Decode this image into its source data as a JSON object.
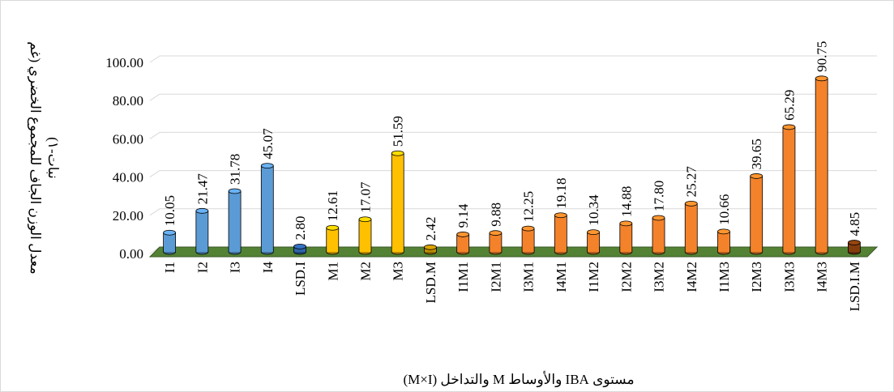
{
  "chart_data": {
    "type": "bar",
    "ylabel": [
      "معدل الوزن الجاف للمجموع الخضري (غم",
      "نبات-١)"
    ],
    "xlabel": "مستوى IBA والأوساط M والتداخل (M×I)",
    "categories": [
      "I1",
      "I2",
      "I3",
      "I4",
      "LSD.I",
      "M1",
      "M2",
      "M3",
      "LSD.M",
      "I1M1",
      "I2M1",
      "I3M1",
      "I4M1",
      "I1M2",
      "I2M2",
      "I3M2",
      "I4M2",
      "I1M3",
      "I2M3",
      "I3M3",
      "I4M3",
      "LSD.I.M"
    ],
    "values": [
      10.05,
      21.47,
      31.78,
      45.07,
      2.8,
      12.61,
      17.07,
      51.59,
      2.42,
      9.14,
      9.88,
      12.25,
      19.18,
      10.34,
      14.88,
      17.8,
      25.27,
      10.66,
      39.65,
      65.29,
      90.75,
      4.85
    ],
    "value_labels": [
      "10.05",
      "21.47",
      "31.78",
      "45.07",
      "2.80",
      "12.61",
      "17.07",
      "51.59",
      "2.42",
      "9.14",
      "9.88",
      "12.25",
      "19.18",
      "10.34",
      "14.88",
      "17.80",
      "25.27",
      "10.66",
      "39.65",
      "65.29",
      "90.75",
      "4.85"
    ],
    "colors": [
      "#5b9bd5",
      "#5b9bd5",
      "#5b9bd5",
      "#5b9bd5",
      "#2e64a8",
      "#ffc000",
      "#ffc000",
      "#ffc000",
      "#bf8f00",
      "#f4822a",
      "#f4822a",
      "#f4822a",
      "#f4822a",
      "#f4822a",
      "#f4822a",
      "#f4822a",
      "#f4822a",
      "#f4822a",
      "#f4822a",
      "#f4822a",
      "#f4822a",
      "#843c0c"
    ],
    "ylim": [
      0,
      100
    ],
    "yticks": [
      {
        "value": 0,
        "label": "0.00"
      },
      {
        "value": 20,
        "label": "20.00"
      },
      {
        "value": 40,
        "label": "40.00"
      },
      {
        "value": 60,
        "label": "60.00"
      },
      {
        "value": 80,
        "label": "80.00"
      },
      {
        "value": 100,
        "label": "100.00"
      }
    ],
    "grid": true
  }
}
